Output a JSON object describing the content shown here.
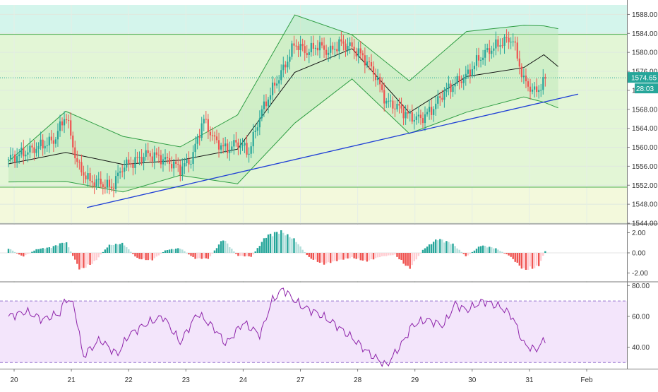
{
  "chart_data": [
    {
      "type": "candlestick",
      "panel": "price",
      "title": "",
      "ylim": [
        1544,
        1590
      ],
      "y_ticks": [
        "1588.00",
        "1584.00",
        "1580.00",
        "1576.00",
        "1572.00",
        "1568.00",
        "1564.00",
        "1560.00",
        "1556.00",
        "1552.00",
        "1548.00",
        "1544.00"
      ],
      "x_ticks": [
        "20",
        "21",
        "22",
        "23",
        "24",
        "27",
        "28",
        "29",
        "30",
        "31",
        "Feb"
      ],
      "last_price_label": "1574.65",
      "countdown_label": "28:03",
      "horizontal_levels": [
        1583.8,
        1551.6
      ],
      "zones": [
        {
          "from": 1583.8,
          "to": 1590,
          "color": "#d4f5ec"
        },
        {
          "from": 1551.6,
          "to": 1583.8,
          "color": "#e3f6d6"
        },
        {
          "from": 1544,
          "to": 1551.6,
          "color": "#f3f9dc"
        }
      ],
      "trendline": {
        "from": [
          "21",
          1547.3
        ],
        "to": [
          "31",
          1571.2
        ],
        "color": "#1f3fd6"
      },
      "bollinger_bands": {
        "x": [
          0,
          1,
          2,
          3,
          4,
          5,
          6,
          7,
          8,
          9,
          9.35,
          9.6
        ],
        "upper": [
          1557.0,
          1567.6,
          1562.3,
          1560.1,
          1566.8,
          1587.9,
          1583.7,
          1574.0,
          1584.4,
          1585.7,
          1585.6,
          1585.0
        ],
        "middle": [
          1556.5,
          1558.9,
          1556.4,
          1557.3,
          1559.6,
          1575.8,
          1580.8,
          1567.3,
          1574.9,
          1576.8,
          1579.5,
          1577.0
        ],
        "lower": [
          1552.7,
          1552.8,
          1550.6,
          1554.1,
          1552.3,
          1565.1,
          1574.4,
          1562.9,
          1567.4,
          1570.6,
          1569.5,
          1568.3
        ],
        "colors": {
          "band": "#2f9e44",
          "basis": "#111111",
          "fill": "#b9e6b6"
        }
      },
      "price_path": {
        "x": [
          0,
          0.2,
          0.4,
          0.6,
          0.8,
          1.0,
          1.2,
          1.4,
          1.6,
          1.8,
          2.0,
          2.2,
          2.4,
          2.6,
          2.8,
          3.0,
          3.2,
          3.4,
          3.6,
          3.8,
          4.0,
          4.2,
          4.4,
          4.6,
          4.8,
          4.95,
          5.0,
          5.2,
          5.4,
          5.6,
          5.8,
          6.0,
          6.2,
          6.4,
          6.6,
          6.8,
          7.0,
          7.2,
          7.4,
          7.6,
          7.8,
          8.0,
          8.2,
          8.4,
          8.6,
          8.8,
          9.0,
          9.2,
          9.4
        ],
        "close": [
          1557.5,
          1558.5,
          1559.5,
          1560.5,
          1561.5,
          1567.0,
          1556.5,
          1553.0,
          1552.5,
          1551.5,
          1556.0,
          1557.0,
          1558.5,
          1558.0,
          1557.0,
          1555.5,
          1557.5,
          1566.0,
          1561.5,
          1559.5,
          1561.0,
          1559.0,
          1567.0,
          1572.0,
          1576.5,
          1580.5,
          1582.0,
          1580.0,
          1581.5,
          1580.0,
          1582.0,
          1581.0,
          1579.0,
          1575.5,
          1569.5,
          1568.5,
          1566.5,
          1566.0,
          1568.0,
          1571.5,
          1573.5,
          1575.0,
          1578.5,
          1580.5,
          1582.0,
          1583.0,
          1574.0,
          1571.5,
          1574.6
        ],
        "up_color": "#26a69a",
        "down_color": "#ef5350"
      }
    },
    {
      "type": "histogram",
      "panel": "oscillator",
      "ylim": [
        -2.8,
        2.8
      ],
      "y_ticks": [
        "2.00",
        "0.00",
        "-2.00"
      ],
      "x": [
        0,
        0.25,
        0.5,
        0.75,
        1.0,
        1.25,
        1.5,
        1.75,
        2.0,
        2.25,
        2.5,
        2.75,
        3.0,
        3.25,
        3.5,
        3.75,
        4.0,
        4.25,
        4.5,
        4.75,
        5.0,
        5.25,
        5.5,
        5.75,
        6.0,
        6.25,
        6.5,
        6.75,
        7.0,
        7.25,
        7.5,
        7.75,
        8.0,
        8.25,
        8.5,
        8.75,
        9.0,
        9.25,
        9.4
      ],
      "values": [
        0.5,
        -0.4,
        0.4,
        0.6,
        1.2,
        -1.8,
        -1.0,
        0.8,
        1.0,
        -0.6,
        -0.8,
        0.3,
        0.5,
        -0.6,
        -0.6,
        1.5,
        -0.3,
        -0.4,
        1.8,
        2.3,
        1.4,
        -0.5,
        -1.2,
        -0.8,
        -0.5,
        -0.9,
        -0.4,
        -0.2,
        -1.7,
        0.4,
        1.5,
        1.0,
        -0.4,
        0.8,
        0.5,
        -0.3,
        -1.8,
        -1.5,
        0.5
      ],
      "colors": {
        "pos_strong": "#26a69a",
        "pos_weak": "#b2dfdb",
        "neg_strong": "#ef5350",
        "neg_weak": "#ffcdd2"
      }
    },
    {
      "type": "line",
      "panel": "rsi",
      "ylim": [
        26,
        82
      ],
      "y_ticks": [
        "80.00",
        "60.00",
        "40.00"
      ],
      "bands": [
        70,
        30
      ],
      "x": [
        0,
        0.3,
        0.6,
        0.9,
        1.0,
        1.15,
        1.3,
        1.6,
        1.9,
        2.1,
        2.4,
        2.7,
        3.0,
        3.3,
        3.6,
        3.8,
        4.1,
        4.4,
        4.6,
        4.8,
        4.95,
        5.1,
        5.4,
        5.7,
        6.0,
        6.3,
        6.6,
        6.9,
        7.05,
        7.3,
        7.6,
        7.8,
        8.0,
        8.3,
        8.6,
        8.8,
        9.0,
        9.2,
        9.4
      ],
      "values": [
        60,
        63,
        58,
        62,
        72,
        67,
        34,
        45,
        35,
        48,
        55,
        60,
        43,
        62,
        52,
        42,
        56,
        48,
        70,
        78,
        72,
        67,
        62,
        55,
        46,
        36,
        28,
        44,
        54,
        58,
        54,
        68,
        64,
        70,
        66,
        60,
        42,
        38,
        46
      ],
      "color": "#8e24aa"
    }
  ]
}
